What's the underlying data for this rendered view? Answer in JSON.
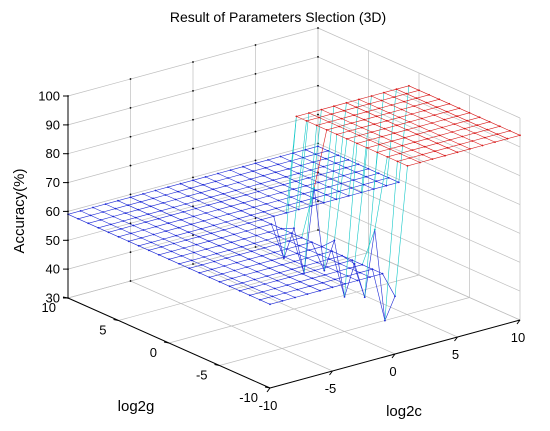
{
  "chart_data": {
    "type": "surface3d",
    "title": "Result of Parameters Slection (3D)",
    "xlabel": "log2c",
    "ylabel": "log2g",
    "zlabel": "Accuracy(%)",
    "xlim": [
      -10,
      10
    ],
    "ylim": [
      -10,
      10
    ],
    "zlim": [
      30,
      100
    ],
    "x_ticks": [
      -10,
      -5,
      0,
      5,
      10
    ],
    "y_ticks": [
      -10,
      -5,
      0,
      5,
      10
    ],
    "z_ticks": [
      30,
      40,
      50,
      60,
      70,
      80,
      90,
      100
    ],
    "x_tick_labels": [
      "-10",
      "-5",
      "0",
      "5",
      "10"
    ],
    "y_tick_labels": [
      "-10",
      "-5",
      "0",
      "5",
      "10"
    ],
    "z_tick_labels": [
      "30",
      "40",
      "50",
      "60",
      "70",
      "80",
      "90",
      "100"
    ],
    "grid": true,
    "grid_step": 1,
    "colormap": "jet",
    "low_plateau_accuracy": 59,
    "high_plateau_accuracy": 94,
    "high_region": "log2c >= 1 and log2g <= 1",
    "transition_note": "spiky drop near log2c = 1 boundary",
    "colors": {
      "low": "#1f2bd6",
      "mid": "#14c8c8",
      "high": "#d81c1c",
      "axes": "#000000",
      "grid": "#bfbfbf"
    }
  }
}
